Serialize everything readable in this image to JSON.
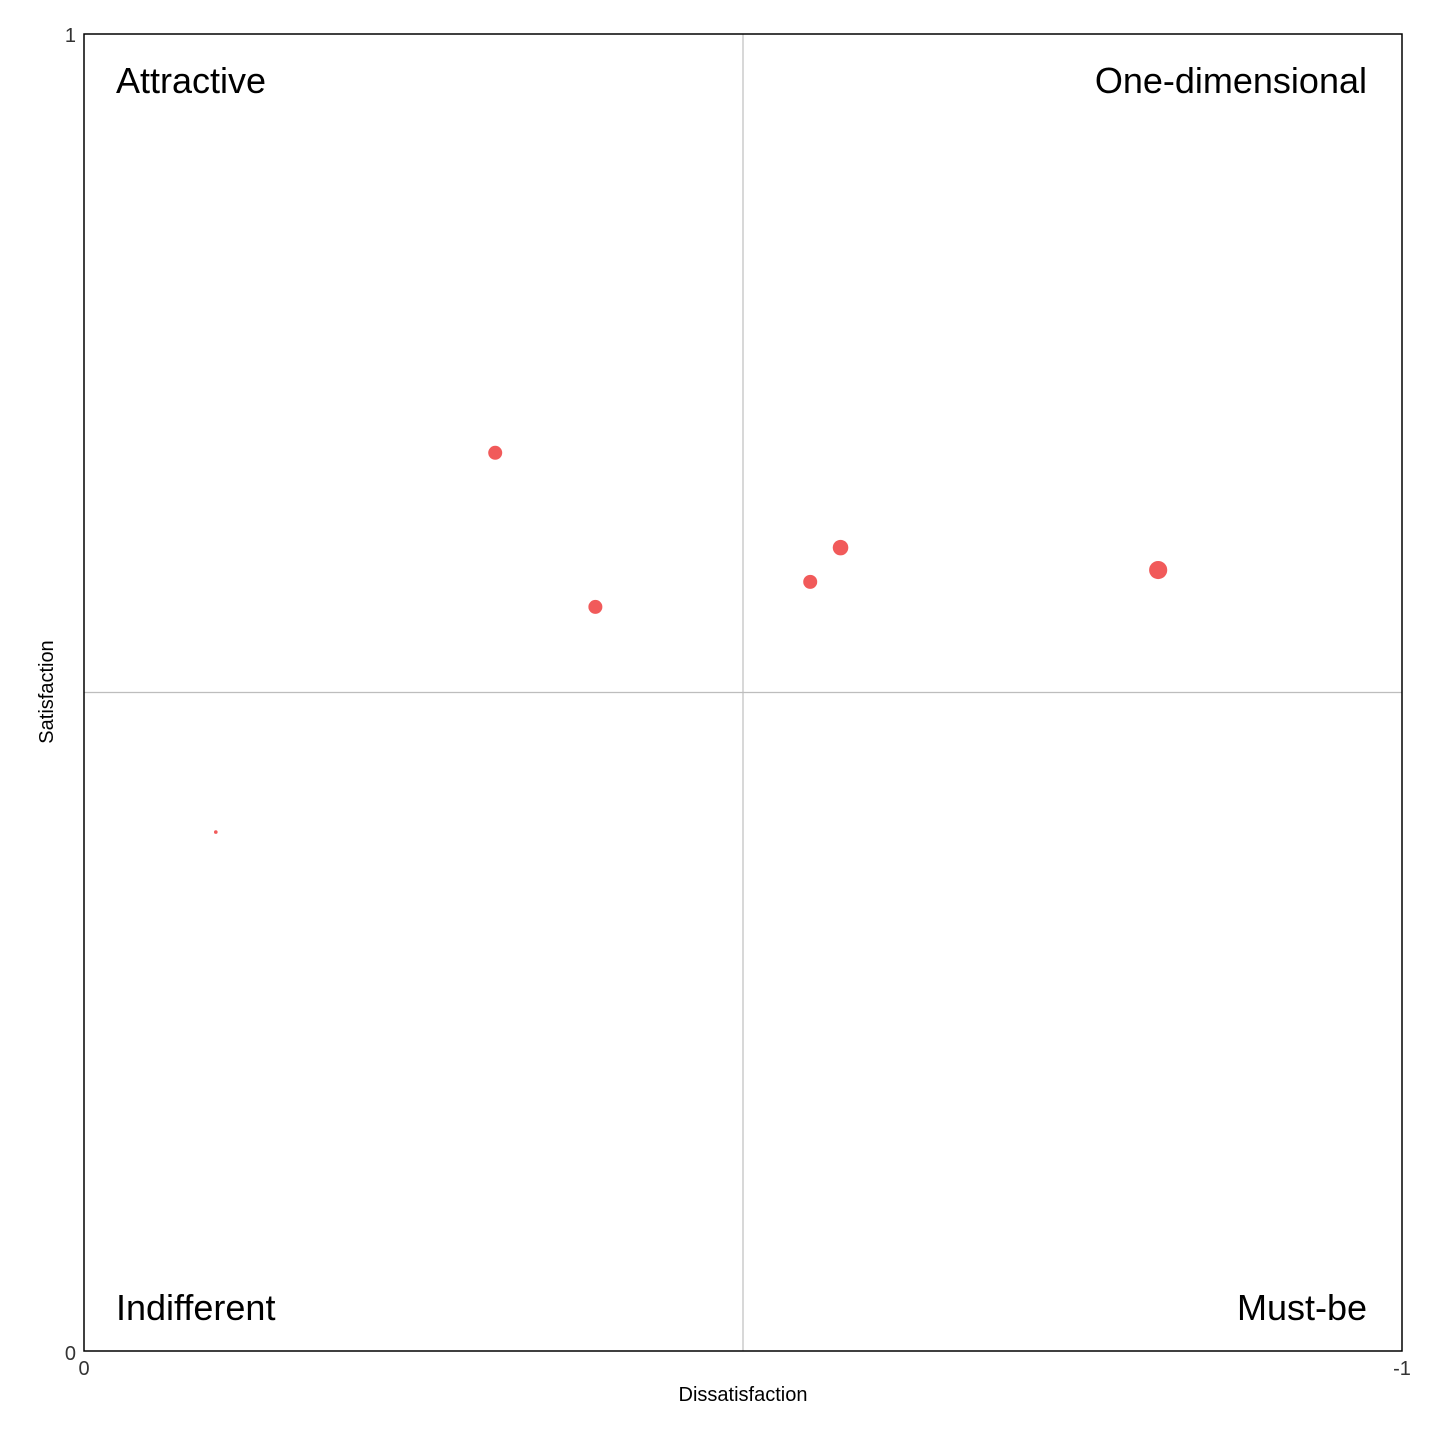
{
  "chart_data": {
    "type": "scatter",
    "title": "",
    "xlabel": "Dissatisfaction",
    "ylabel": "Satisfaction",
    "xlim": [
      0,
      -1
    ],
    "ylim": [
      0,
      1
    ],
    "x_ticks": [
      "0",
      "-1"
    ],
    "y_ticks": [
      "0",
      "1"
    ],
    "reference_lines": {
      "x": -0.5,
      "y": 0.5
    },
    "grid": false,
    "quadrant_labels": {
      "top_left": "Attractive",
      "top_right": "One-dimensional",
      "bottom_left": "Indifferent",
      "bottom_right": "Must-be"
    },
    "point_color": "#F15A5A",
    "points": [
      {
        "x": -0.1,
        "y": 0.394,
        "size": 1
      },
      {
        "x": -0.312,
        "y": 0.682,
        "size": 3
      },
      {
        "x": -0.388,
        "y": 0.565,
        "size": 3
      },
      {
        "x": -0.551,
        "y": 0.584,
        "size": 3
      },
      {
        "x": -0.574,
        "y": 0.61,
        "size": 3.3
      },
      {
        "x": -0.815,
        "y": 0.593,
        "size": 3.8
      }
    ]
  }
}
